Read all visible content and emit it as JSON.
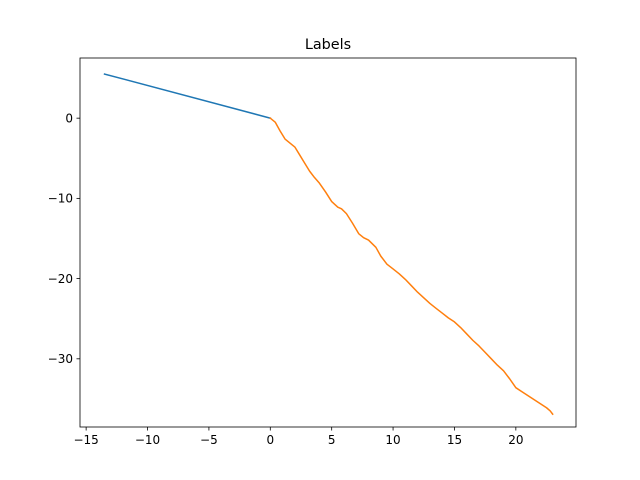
{
  "chart_data": {
    "type": "line",
    "title": "Labels",
    "xlabel": "",
    "ylabel": "",
    "xlim": [
      -15.5,
      24.9
    ],
    "ylim": [
      -38.5,
      7.5
    ],
    "xticks": [
      -15,
      -10,
      -5,
      0,
      5,
      10,
      15,
      20
    ],
    "xtick_labels": [
      "−15",
      "−10",
      "−5",
      "0",
      "5",
      "10",
      "15",
      "20"
    ],
    "yticks": [
      -30,
      -20,
      -10,
      0
    ],
    "ytick_labels": [
      "−30",
      "−20",
      "−10",
      "0"
    ],
    "grid": false,
    "series": [
      {
        "color": "#1f77b4",
        "x": [
          -13.5,
          0
        ],
        "y": [
          5.5,
          0
        ]
      },
      {
        "color": "#ff7f0e",
        "x": [
          0,
          0.4,
          0.8,
          1.2,
          1.6,
          2.0,
          2.4,
          2.8,
          3.2,
          3.6,
          4.0,
          4.5,
          5.0,
          5.5,
          5.8,
          6.2,
          6.7,
          7.2,
          7.6,
          8.0,
          8.6,
          9.0,
          9.5,
          10.0,
          10.5,
          11.0,
          11.5,
          12.0,
          12.5,
          13.0,
          13.5,
          14.0,
          14.5,
          15.0,
          15.5,
          16.0,
          16.5,
          17.0,
          17.5,
          18.0,
          18.5,
          19.0,
          19.5,
          20.0,
          20.5,
          21.0,
          21.5,
          22.0,
          22.5,
          22.8,
          23.0
        ],
        "y": [
          0,
          -0.5,
          -1.6,
          -2.6,
          -3.1,
          -3.6,
          -4.6,
          -5.6,
          -6.6,
          -7.4,
          -8.1,
          -9.2,
          -10.4,
          -11.1,
          -11.3,
          -11.9,
          -13.1,
          -14.4,
          -14.9,
          -15.2,
          -16.1,
          -17.2,
          -18.2,
          -18.8,
          -19.4,
          -20.1,
          -20.9,
          -21.7,
          -22.4,
          -23.1,
          -23.7,
          -24.3,
          -24.9,
          -25.4,
          -26.1,
          -26.9,
          -27.7,
          -28.4,
          -29.2,
          -30.0,
          -30.8,
          -31.5,
          -32.5,
          -33.6,
          -34.1,
          -34.6,
          -35.1,
          -35.6,
          -36.1,
          -36.5,
          -36.9
        ]
      }
    ]
  }
}
